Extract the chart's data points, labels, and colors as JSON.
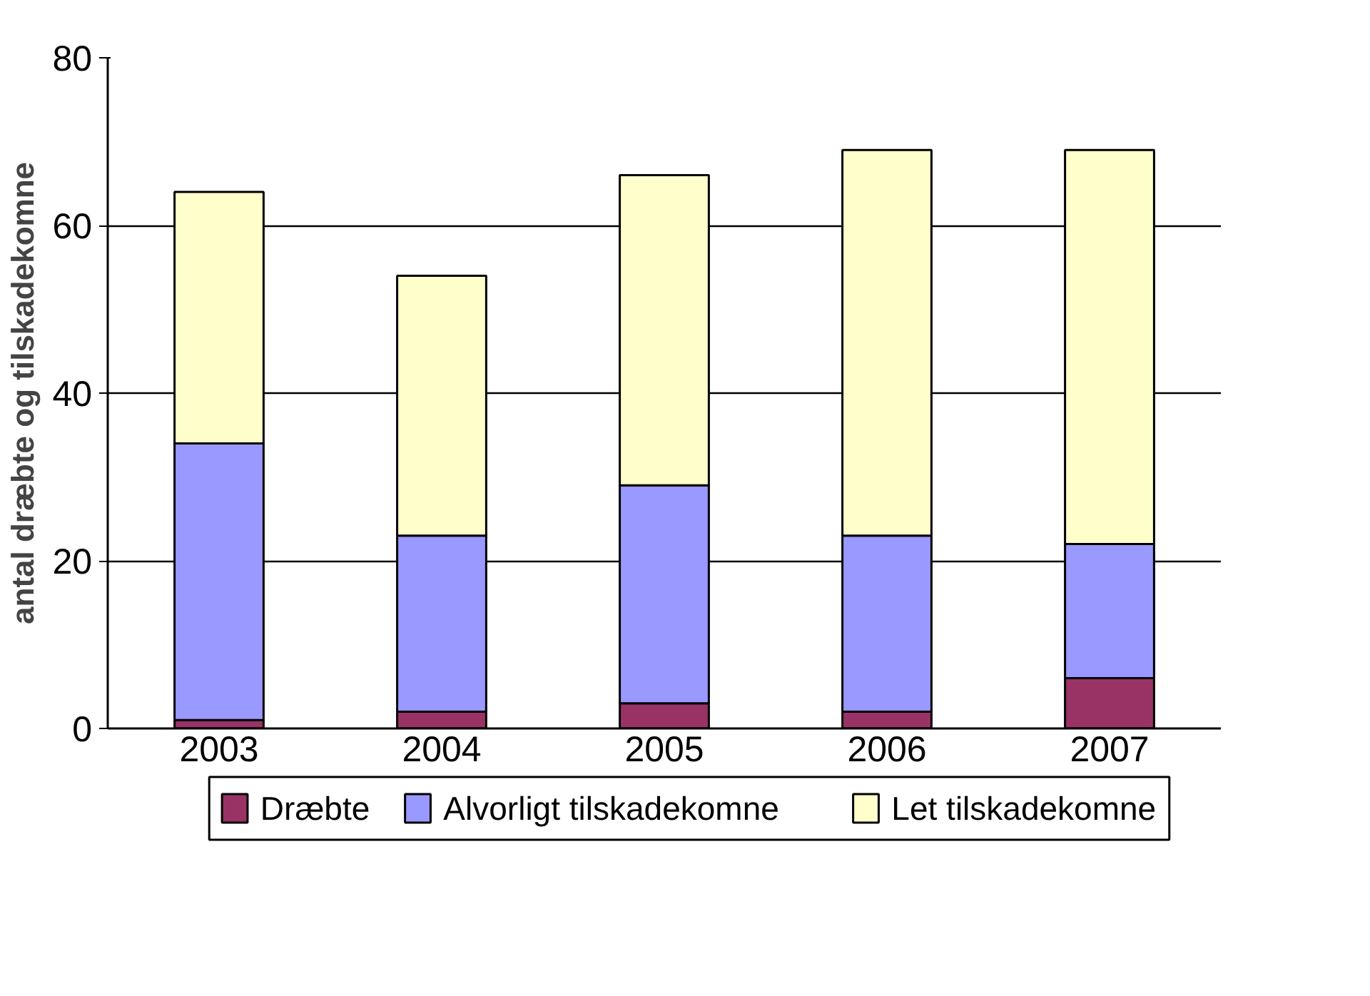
{
  "chart_data": {
    "type": "bar",
    "stacked": true,
    "ylabel": "antal dræbte og tilskadekomne",
    "categories": [
      "2003",
      "2004",
      "2005",
      "2006",
      "2007"
    ],
    "series": [
      {
        "name": "Dræbte",
        "color": "#993366",
        "values": [
          1,
          2,
          3,
          2,
          6
        ]
      },
      {
        "name": "Alvorligt tilskadekomne",
        "color": "#9999ff",
        "values": [
          33,
          21,
          26,
          21,
          16
        ]
      },
      {
        "name": "Let tilskadekomne",
        "color": "#ffffcc",
        "values": [
          30,
          31,
          37,
          46,
          47
        ]
      }
    ],
    "ylim": [
      0,
      80
    ],
    "yticks": [
      0,
      20,
      40,
      60,
      80
    ],
    "grid": "y",
    "legend": "bottom"
  }
}
